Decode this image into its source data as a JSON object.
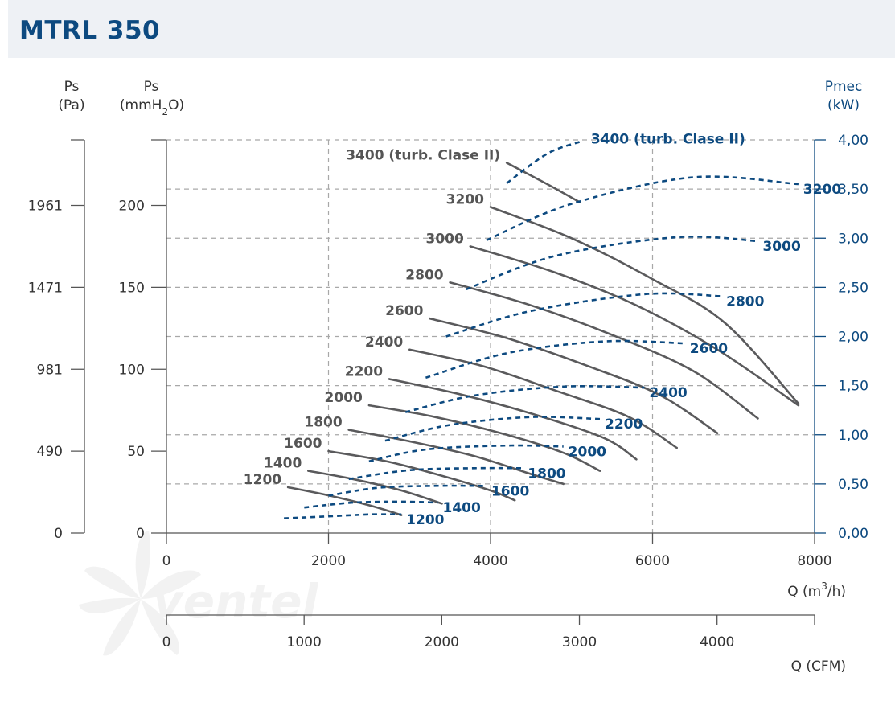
{
  "header": {
    "title": "MTRL 350"
  },
  "watermark": "ventel",
  "colors": {
    "static_curve": "#5a5a5c",
    "power_curve": "#0d4a80",
    "header_bg": "#eef1f5"
  },
  "axes": {
    "ps_pa": {
      "label_top": "Ps",
      "label_unit": "(Pa)",
      "ticks": [
        "0",
        "490",
        "981",
        "1471",
        "1961"
      ]
    },
    "ps_mmh2o": {
      "label_top": "Ps",
      "unit_pre": "(mmH",
      "unit_sub": "2",
      "unit_post": "O)",
      "ticks": [
        "0",
        "50",
        "100",
        "150",
        "200"
      ]
    },
    "pmec": {
      "label_top": "Pmec",
      "label_unit": "(kW)",
      "ticks": [
        "0,00",
        "0,50",
        "1,00",
        "1,50",
        "2,00",
        "2,50",
        "3,00",
        "3,50",
        "4,00"
      ]
    },
    "q_m3h": {
      "label_pre": "Q (m",
      "label_sup": "3",
      "label_post": "/h)",
      "ticks": [
        "0",
        "2000",
        "4000",
        "6000",
        "8000"
      ]
    },
    "q_cfm": {
      "label": "Q (CFM)",
      "ticks": [
        "0",
        "1000",
        "2000",
        "3000",
        "4000"
      ]
    }
  },
  "chart_data": {
    "type": "line",
    "title": "MTRL 350",
    "xlabel": "Q (m3/h)",
    "ylabel": "Ps (mmH2O)",
    "ylabel_right": "Pmec (kW)",
    "xlim": [
      0,
      8000
    ],
    "ylim": [
      0,
      240
    ],
    "ylim_right": [
      0,
      4
    ],
    "grid": true,
    "static_pressure_series": [
      {
        "name": "1200",
        "points": [
          [
            1500,
            28
          ],
          [
            2000,
            23
          ],
          [
            2500,
            17
          ],
          [
            2900,
            11
          ]
        ]
      },
      {
        "name": "1400",
        "points": [
          [
            1750,
            38
          ],
          [
            2300,
            33
          ],
          [
            2900,
            26
          ],
          [
            3400,
            18
          ]
        ]
      },
      {
        "name": "1600",
        "points": [
          [
            2000,
            50
          ],
          [
            2700,
            44
          ],
          [
            3400,
            35
          ],
          [
            4000,
            26
          ],
          [
            4300,
            20
          ]
        ]
      },
      {
        "name": "1800",
        "points": [
          [
            2250,
            63
          ],
          [
            3000,
            56
          ],
          [
            3800,
            47
          ],
          [
            4500,
            36
          ],
          [
            4900,
            30
          ]
        ]
      },
      {
        "name": "2000",
        "points": [
          [
            2500,
            78
          ],
          [
            3300,
            71
          ],
          [
            4200,
            60
          ],
          [
            4900,
            49
          ],
          [
            5350,
            38
          ]
        ]
      },
      {
        "name": "2200",
        "points": [
          [
            2750,
            94
          ],
          [
            3600,
            85
          ],
          [
            4500,
            73
          ],
          [
            5400,
            58
          ],
          [
            5800,
            45
          ]
        ]
      },
      {
        "name": "2400",
        "points": [
          [
            3000,
            112
          ],
          [
            3900,
            102
          ],
          [
            4800,
            87
          ],
          [
            5700,
            71
          ],
          [
            6300,
            52
          ]
        ]
      },
      {
        "name": "2600",
        "points": [
          [
            3250,
            131
          ],
          [
            4200,
            119
          ],
          [
            5200,
            102
          ],
          [
            6100,
            84
          ],
          [
            6800,
            61
          ]
        ]
      },
      {
        "name": "2800",
        "points": [
          [
            3500,
            153
          ],
          [
            4500,
            139
          ],
          [
            5500,
            121
          ],
          [
            6500,
            99
          ],
          [
            7300,
            70
          ]
        ]
      },
      {
        "name": "3000",
        "points": [
          [
            3750,
            175
          ],
          [
            4800,
            159
          ],
          [
            5800,
            139
          ],
          [
            6800,
            112
          ],
          [
            7800,
            78
          ]
        ]
      },
      {
        "name": "3200",
        "points": [
          [
            4000,
            199
          ],
          [
            5000,
            180
          ],
          [
            6000,
            155
          ],
          [
            6900,
            128
          ],
          [
            7800,
            79
          ]
        ]
      },
      {
        "name": "3400 (turb. Clase II)",
        "points": [
          [
            4200,
            226
          ],
          [
            4700,
            213
          ],
          [
            5100,
            202
          ]
        ]
      }
    ],
    "power_series": [
      {
        "name": "1200",
        "points": [
          [
            1450,
            0.15
          ],
          [
            2000,
            0.17
          ],
          [
            2500,
            0.19
          ],
          [
            2900,
            0.19
          ]
        ]
      },
      {
        "name": "1400",
        "points": [
          [
            1700,
            0.26
          ],
          [
            2300,
            0.31
          ],
          [
            2900,
            0.32
          ],
          [
            3350,
            0.31
          ]
        ]
      },
      {
        "name": "1600",
        "points": [
          [
            2000,
            0.38
          ],
          [
            2600,
            0.46
          ],
          [
            3300,
            0.48
          ],
          [
            3950,
            0.48
          ]
        ]
      },
      {
        "name": "1800",
        "points": [
          [
            2250,
            0.55
          ],
          [
            3000,
            0.64
          ],
          [
            3800,
            0.66
          ],
          [
            4400,
            0.66
          ]
        ]
      },
      {
        "name": "2000",
        "points": [
          [
            2500,
            0.73
          ],
          [
            3200,
            0.85
          ],
          [
            4200,
            0.89
          ],
          [
            4900,
            0.88
          ]
        ]
      },
      {
        "name": "2200",
        "points": [
          [
            2700,
            0.94
          ],
          [
            3500,
            1.1
          ],
          [
            4500,
            1.18
          ],
          [
            5350,
            1.16
          ]
        ]
      },
      {
        "name": "2400",
        "points": [
          [
            2950,
            1.23
          ],
          [
            3800,
            1.4
          ],
          [
            4900,
            1.49
          ],
          [
            5900,
            1.48
          ]
        ]
      },
      {
        "name": "2600",
        "points": [
          [
            3200,
            1.58
          ],
          [
            4200,
            1.83
          ],
          [
            5400,
            1.95
          ],
          [
            6400,
            1.93
          ]
        ]
      },
      {
        "name": "2800",
        "points": [
          [
            3450,
            2.0
          ],
          [
            4500,
            2.26
          ],
          [
            5900,
            2.43
          ],
          [
            6850,
            2.41
          ]
        ]
      },
      {
        "name": "3000",
        "points": [
          [
            3700,
            2.48
          ],
          [
            4800,
            2.82
          ],
          [
            6300,
            3.01
          ],
          [
            7300,
            2.97
          ]
        ]
      },
      {
        "name": "3200",
        "points": [
          [
            3950,
            2.98
          ],
          [
            5000,
            3.35
          ],
          [
            6500,
            3.62
          ],
          [
            7800,
            3.55
          ]
        ]
      },
      {
        "name": "3400 (turb. Clase II)",
        "points": [
          [
            4200,
            3.56
          ],
          [
            4700,
            3.86
          ],
          [
            5100,
            3.98
          ]
        ]
      }
    ]
  }
}
